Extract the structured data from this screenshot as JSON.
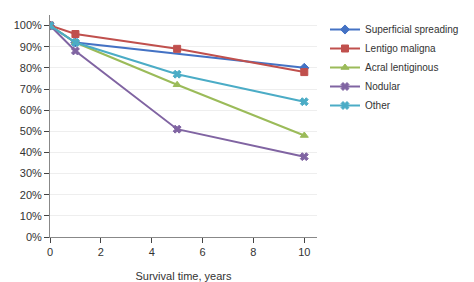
{
  "chart_data": {
    "type": "line",
    "xlabel": "Survival time, years",
    "series": [
      {
        "name": "Superficial spreading",
        "color": "#4472C4",
        "marker": "diamond",
        "x": [
          0,
          1,
          10
        ],
        "values": [
          100,
          92,
          80
        ]
      },
      {
        "name": "Lentigo maligna",
        "color": "#C0504D",
        "marker": "square",
        "x": [
          0,
          1,
          5,
          10
        ],
        "values": [
          100,
          96,
          89,
          78
        ]
      },
      {
        "name": "Acral lentiginous",
        "color": "#9BBB59",
        "marker": "triangle-up",
        "x": [
          0,
          1,
          5,
          10
        ],
        "values": [
          100,
          92,
          72,
          48
        ]
      },
      {
        "name": "Nodular",
        "color": "#8064A2",
        "marker": "x",
        "x": [
          0,
          1,
          5,
          10
        ],
        "values": [
          100,
          88,
          51,
          38
        ]
      },
      {
        "name": "Other",
        "color": "#4BACC6",
        "marker": "x",
        "x": [
          0,
          1,
          5,
          10
        ],
        "values": [
          100,
          92,
          77,
          64
        ]
      }
    ],
    "xlim": [
      0,
      10.5
    ],
    "ylim": [
      0,
      105
    ],
    "xticks": [
      0,
      2,
      4,
      6,
      8,
      10
    ],
    "yticks": [
      {
        "value": 0,
        "label": "0%"
      },
      {
        "value": 10,
        "label": "10%"
      },
      {
        "value": 20,
        "label": "20%"
      },
      {
        "value": 30,
        "label": "30%"
      },
      {
        "value": 40,
        "label": "40%"
      },
      {
        "value": 50,
        "label": "50%"
      },
      {
        "value": 60,
        "label": "60%"
      },
      {
        "value": 70,
        "label": "70%"
      },
      {
        "value": 80,
        "label": "80%"
      },
      {
        "value": 90,
        "label": "90%"
      },
      {
        "value": 100,
        "label": "100%"
      }
    ],
    "grid": "y",
    "legend": "right"
  }
}
